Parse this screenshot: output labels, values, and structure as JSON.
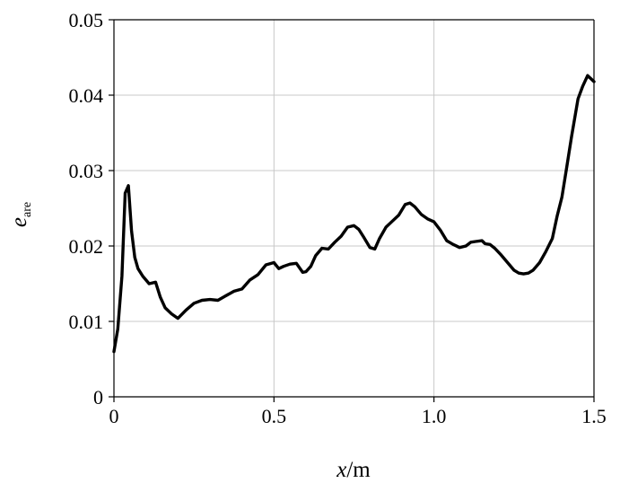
{
  "chart_data": {
    "type": "line",
    "title": "",
    "xlabel": {
      "var": "x",
      "sep": "/",
      "unit": "m"
    },
    "ylabel": {
      "var": "e",
      "sub": "are"
    },
    "xlim": [
      0,
      1.5
    ],
    "ylim": [
      0,
      0.05
    ],
    "x_ticks": [
      0,
      0.5,
      1.0,
      1.5
    ],
    "x_tick_labels": [
      "0",
      "0.5",
      "1.0",
      "1.5"
    ],
    "y_ticks": [
      0,
      0.01,
      0.02,
      0.03,
      0.04,
      0.05
    ],
    "y_tick_labels": [
      "0",
      "0.01",
      "0.02",
      "0.03",
      "0.04",
      "0.05"
    ],
    "grid": true,
    "legend": "none",
    "colors": {
      "line": "#000000",
      "grid": "#c8c8c8",
      "background": "#ffffff"
    },
    "series": [
      {
        "x": [
          0.0,
          0.012,
          0.025,
          0.035,
          0.045,
          0.055,
          0.065,
          0.075,
          0.09,
          0.11,
          0.13,
          0.145,
          0.16,
          0.18,
          0.2,
          0.225,
          0.25,
          0.275,
          0.3,
          0.325,
          0.35,
          0.375,
          0.4,
          0.425,
          0.45,
          0.475,
          0.5,
          0.515,
          0.53,
          0.55,
          0.57,
          0.59,
          0.6,
          0.615,
          0.63,
          0.65,
          0.67,
          0.69,
          0.71,
          0.73,
          0.75,
          0.765,
          0.78,
          0.8,
          0.815,
          0.83,
          0.85,
          0.87,
          0.89,
          0.91,
          0.925,
          0.94,
          0.96,
          0.98,
          1.0,
          1.02,
          1.04,
          1.06,
          1.08,
          1.1,
          1.115,
          1.13,
          1.15,
          1.16,
          1.175,
          1.19,
          1.21,
          1.23,
          1.25,
          1.265,
          1.28,
          1.295,
          1.31,
          1.33,
          1.35,
          1.37,
          1.385,
          1.4,
          1.415,
          1.43,
          1.45,
          1.465,
          1.48,
          1.49,
          1.5
        ],
        "values": [
          0.006,
          0.009,
          0.016,
          0.027,
          0.028,
          0.022,
          0.0185,
          0.017,
          0.016,
          0.015,
          0.0152,
          0.0132,
          0.0118,
          0.011,
          0.0104,
          0.0115,
          0.0124,
          0.0128,
          0.0129,
          0.0128,
          0.0134,
          0.014,
          0.0143,
          0.0155,
          0.0162,
          0.0175,
          0.0178,
          0.017,
          0.0173,
          0.0176,
          0.0177,
          0.0165,
          0.0166,
          0.0173,
          0.0187,
          0.0197,
          0.0196,
          0.0205,
          0.0213,
          0.0225,
          0.0227,
          0.0222,
          0.0212,
          0.0198,
          0.0196,
          0.021,
          0.0225,
          0.0233,
          0.0241,
          0.0255,
          0.0257,
          0.0252,
          0.0242,
          0.0236,
          0.0232,
          0.0221,
          0.0207,
          0.0202,
          0.0198,
          0.02,
          0.0205,
          0.0206,
          0.0207,
          0.0203,
          0.0202,
          0.0197,
          0.0188,
          0.0178,
          0.0168,
          0.0164,
          0.0163,
          0.0164,
          0.0168,
          0.0178,
          0.0193,
          0.021,
          0.024,
          0.0265,
          0.0305,
          0.0345,
          0.0395,
          0.0412,
          0.0426,
          0.0422,
          0.0418
        ]
      }
    ]
  }
}
